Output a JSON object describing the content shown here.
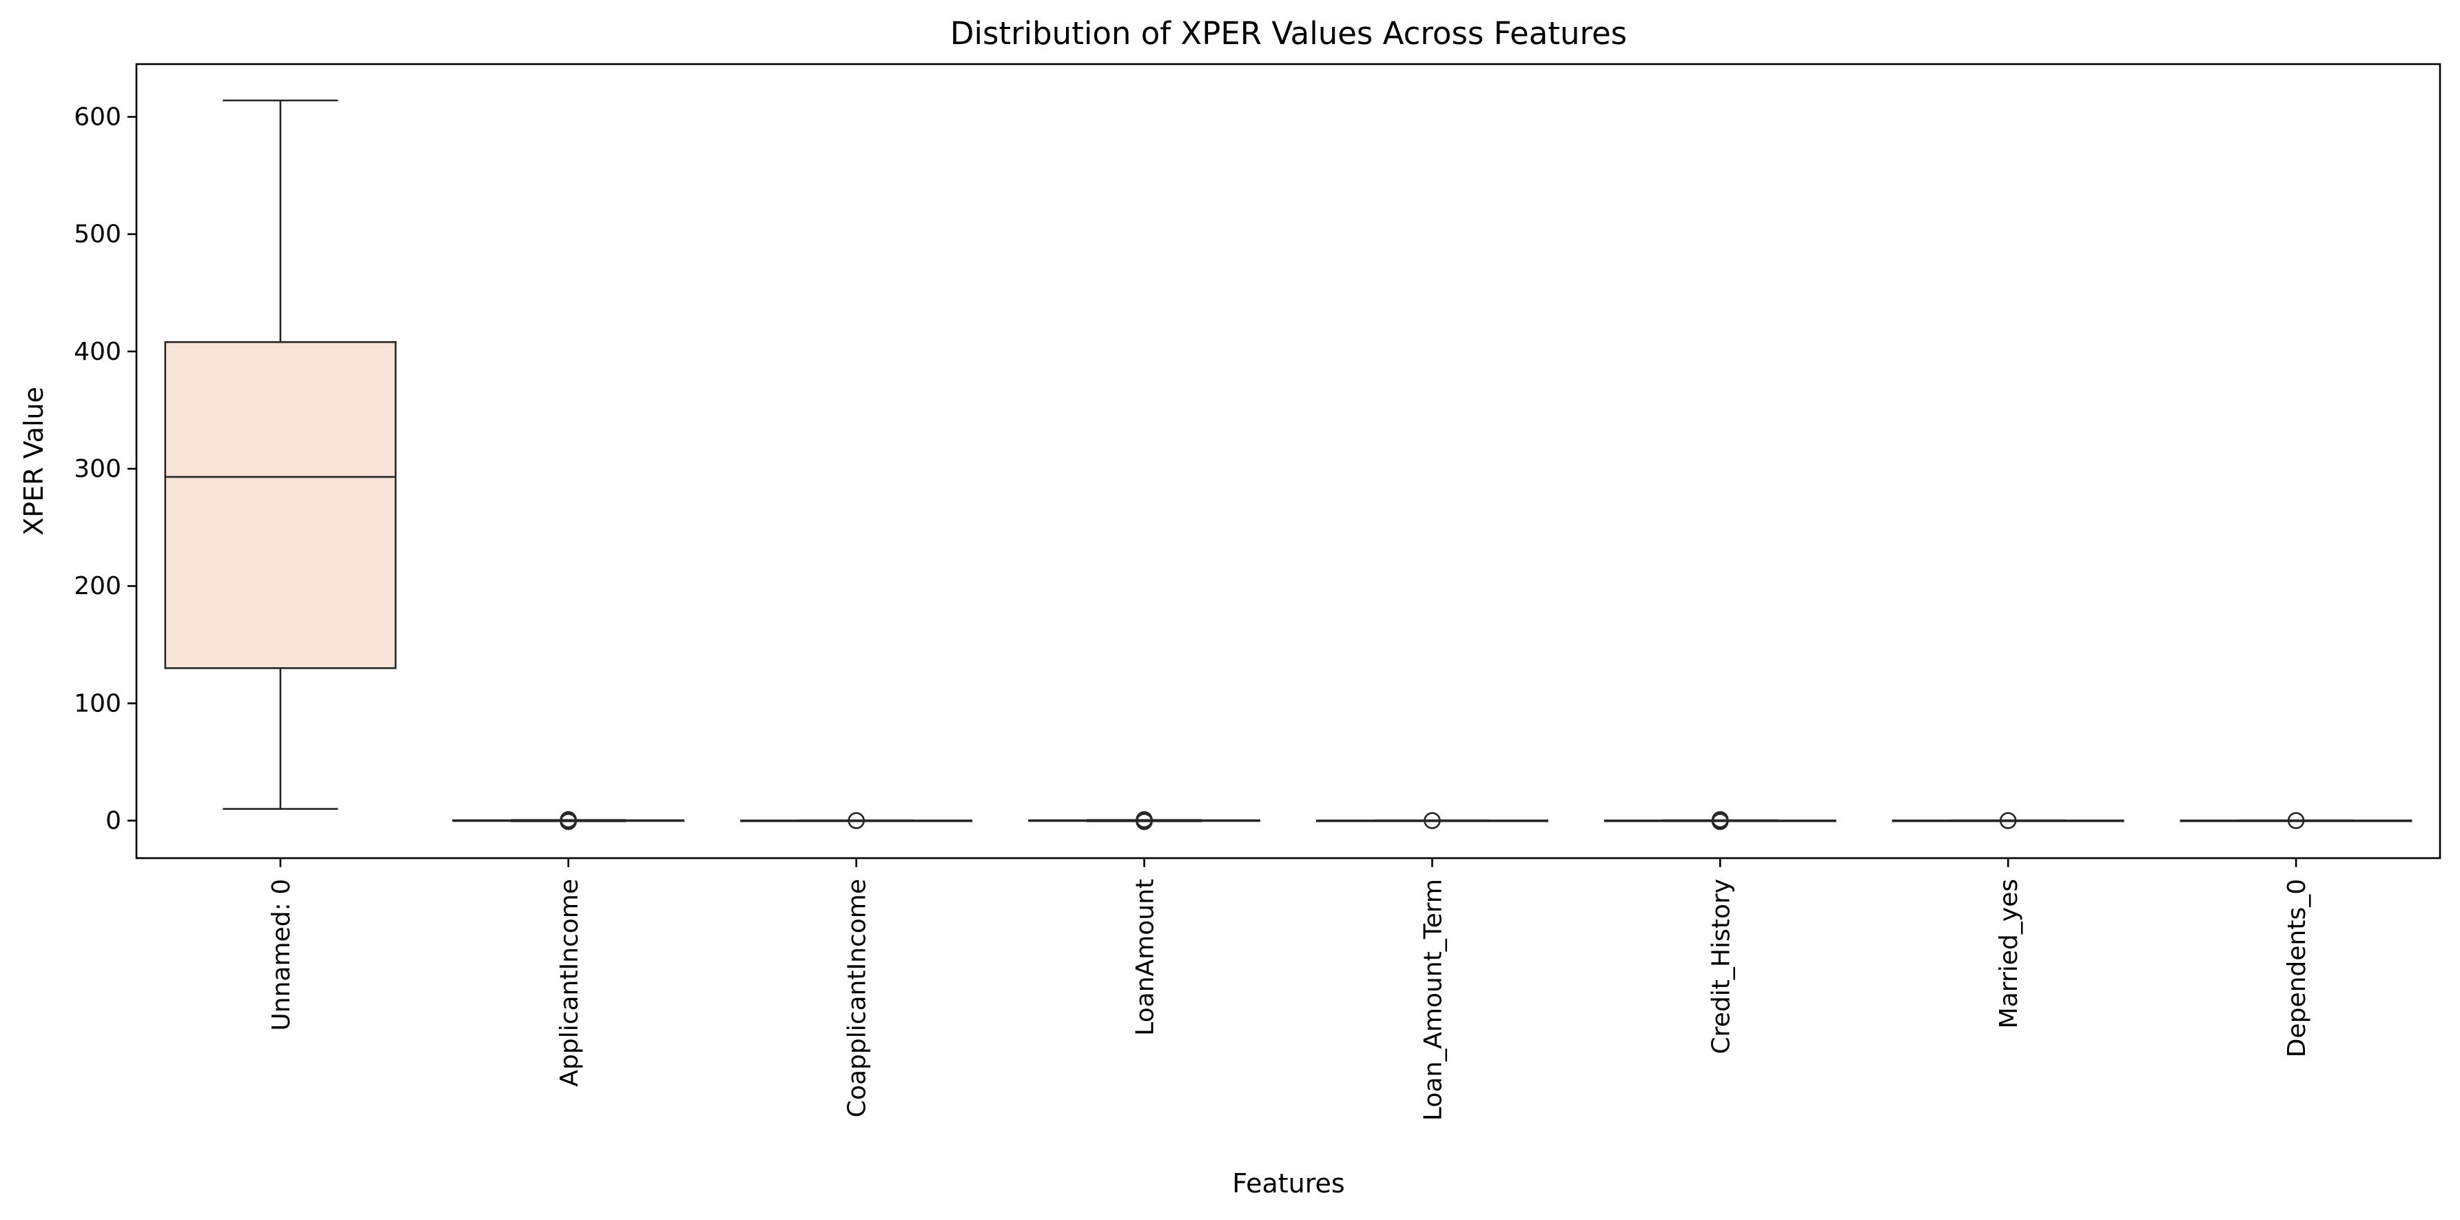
{
  "chart_data": {
    "type": "box",
    "title": "Distribution of XPER Values Across Features",
    "xlabel": "Features",
    "ylabel": "XPER Value",
    "ylim": [
      -32,
      645
    ],
    "yticks": [
      0,
      100,
      200,
      300,
      400,
      500,
      600
    ],
    "grid": false,
    "legend": "none",
    "colors": {
      "box_first": "#f9e4da",
      "box_default": "#f9e4da",
      "line": "#262626",
      "axis": "#000000"
    },
    "categories": [
      "Unnamed: 0",
      "ApplicantIncome",
      "CoapplicantIncome",
      "LoanAmount",
      "Loan_Amount_Term",
      "Credit_History",
      "Married_yes",
      "Dependents_0"
    ],
    "boxes": [
      {
        "whisker_low": 10,
        "q1": 130,
        "median": 293,
        "q3": 408,
        "whisker_high": 614,
        "outliers": []
      },
      {
        "whisker_low": -0.5,
        "q1": -0.3,
        "median": 0,
        "q3": 0.3,
        "whisker_high": 0.5,
        "outliers": [
          0,
          0.8,
          -0.8
        ]
      },
      {
        "whisker_low": -0.2,
        "q1": -0.1,
        "median": 0,
        "q3": 0.1,
        "whisker_high": 0.2,
        "outliers": [
          0
        ]
      },
      {
        "whisker_low": -0.5,
        "q1": -0.3,
        "median": 0,
        "q3": 0.3,
        "whisker_high": 0.5,
        "outliers": [
          0,
          0.8,
          -0.8
        ]
      },
      {
        "whisker_low": -0.2,
        "q1": -0.1,
        "median": 0,
        "q3": 0.1,
        "whisker_high": 0.2,
        "outliers": [
          0
        ]
      },
      {
        "whisker_low": -0.3,
        "q1": -0.1,
        "median": 0,
        "q3": 0.1,
        "whisker_high": 0.3,
        "outliers": [
          0,
          0.8,
          -0.8
        ]
      },
      {
        "whisker_low": -0.2,
        "q1": -0.1,
        "median": 0,
        "q3": 0.1,
        "whisker_high": 0.2,
        "outliers": [
          0
        ]
      },
      {
        "whisker_low": -0.2,
        "q1": -0.1,
        "median": 0,
        "q3": 0.1,
        "whisker_high": 0.2,
        "outliers": [
          0
        ]
      }
    ]
  }
}
